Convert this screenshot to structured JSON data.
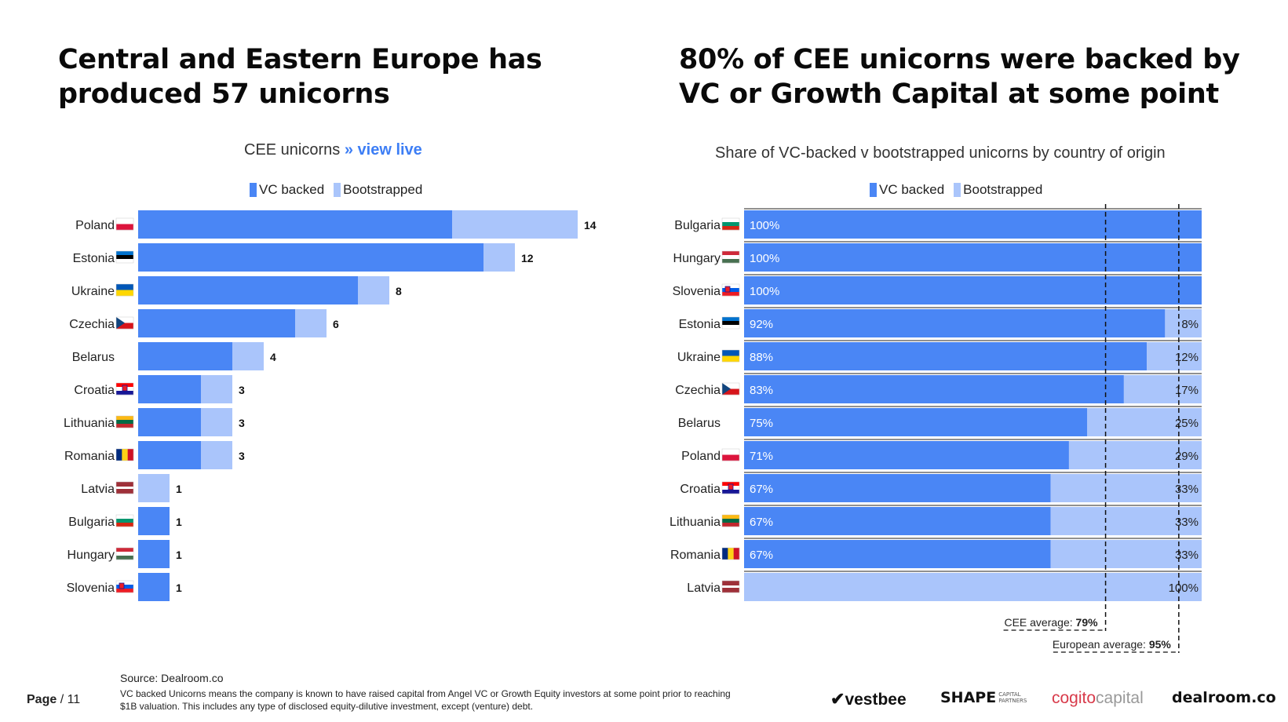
{
  "colors": {
    "vc": "#4a86f5",
    "boot": "#aac5fb",
    "text": "#222222"
  },
  "left": {
    "title_line1": "Central and Eastern Europe has",
    "title_line2": "produced 57 unicorns",
    "subtitle": "CEE unicorns",
    "subtitle_link": "» view live"
  },
  "right": {
    "title_line1": "80% of CEE unicorns were backed by",
    "title_line2": "VC or Growth Capital at some point",
    "subtitle": "Share of VC-backed v bootstrapped unicorns by country of origin"
  },
  "legend": {
    "vc_label": "VC backed",
    "boot_label": "Bootstrapped"
  },
  "chart_data": [
    {
      "type": "bar",
      "orientation": "horizontal",
      "stacked": true,
      "title": "CEE unicorns",
      "categories": [
        "Poland",
        "Estonia",
        "Ukraine",
        "Czechia",
        "Belarus",
        "Croatia",
        "Lithuania",
        "Romania",
        "Latvia",
        "Bulgaria",
        "Hungary",
        "Slovenia"
      ],
      "flags": [
        "poland-flag-icon",
        "estonia-flag-icon",
        "ukraine-flag-icon",
        "czechia-flag-icon",
        "",
        "croatia-flag-icon",
        "lithuania-flag-icon",
        "romania-flag-icon",
        "latvia-flag-icon",
        "bulgaria-flag-icon",
        "hungary-flag-icon",
        "slovenia-flag-icon"
      ],
      "series": [
        {
          "name": "VC backed",
          "values": [
            10,
            11,
            7,
            5,
            3,
            2,
            2,
            2,
            0,
            1,
            1,
            1
          ]
        },
        {
          "name": "Bootstrapped",
          "values": [
            4,
            1,
            1,
            1,
            1,
            1,
            1,
            1,
            1,
            0,
            0,
            0
          ]
        }
      ],
      "totals": [
        14,
        12,
        8,
        6,
        4,
        3,
        3,
        3,
        1,
        1,
        1,
        1
      ],
      "xlim": [
        0,
        14
      ]
    },
    {
      "type": "bar",
      "orientation": "horizontal",
      "stacked": true,
      "percent": true,
      "title": "Share of VC-backed v bootstrapped unicorns by country of origin",
      "categories": [
        "Bulgaria",
        "Hungary",
        "Slovenia",
        "Estonia",
        "Ukraine",
        "Czechia",
        "Belarus",
        "Poland",
        "Croatia",
        "Lithuania",
        "Romania",
        "Latvia"
      ],
      "flags": [
        "bulgaria-flag-icon",
        "hungary-flag-icon",
        "slovenia-flag-icon",
        "estonia-flag-icon",
        "ukraine-flag-icon",
        "czechia-flag-icon",
        "",
        "poland-flag-icon",
        "croatia-flag-icon",
        "lithuania-flag-icon",
        "romania-flag-icon",
        "latvia-flag-icon"
      ],
      "series": [
        {
          "name": "VC backed",
          "values": [
            100,
            100,
            100,
            92,
            88,
            83,
            75,
            71,
            67,
            67,
            67,
            0
          ]
        },
        {
          "name": "Bootstrapped",
          "values": [
            0,
            0,
            0,
            8,
            12,
            17,
            25,
            29,
            33,
            33,
            33,
            100
          ]
        }
      ],
      "xlim": [
        0,
        100
      ],
      "reference_lines": [
        {
          "label": "CEE average:",
          "value": 79,
          "value_label": "79%"
        },
        {
          "label": "European average:",
          "value": 95,
          "value_label": "95%"
        }
      ]
    }
  ],
  "footer": {
    "source": "Source:  Dealroom.co",
    "note": "VC backed Unicorns means the company is known to have raised capital from Angel VC or Growth Equity investors at some point prior to reaching $1B valuation. This includes any type of disclosed equity-dilutive investment, except (venture) debt.",
    "page_label": "Page",
    "page_number": "/ 11"
  },
  "logos": {
    "vestbee": "vestbee",
    "shape": "SHAPE",
    "shape_sub1": "CAPITAL",
    "shape_sub2": "PARTNERS",
    "cogito1": "cogito",
    "cogito2": "capital",
    "dealroom": "dealroom.co"
  }
}
